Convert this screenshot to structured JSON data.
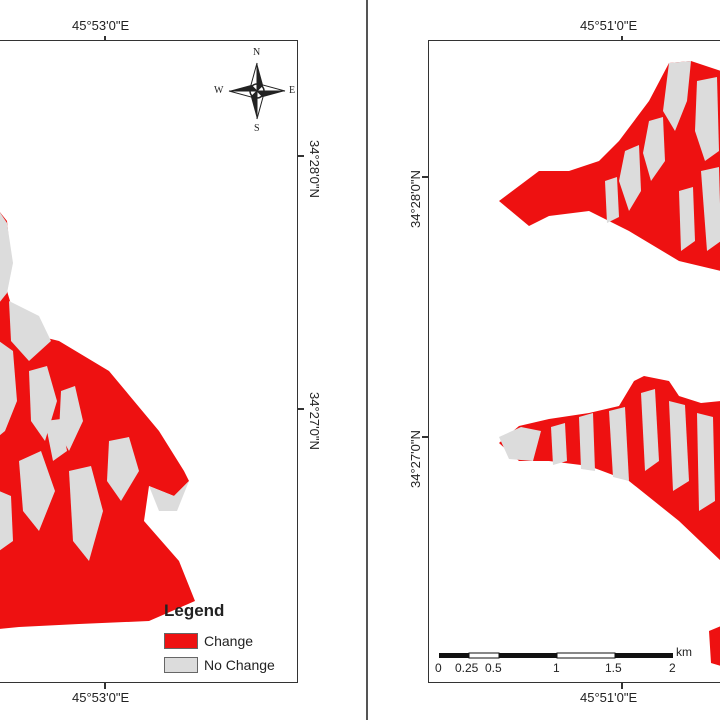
{
  "left_map": {
    "lon_label_top": "45°53'0\"E",
    "lon_label_bottom": "45°53'0\"E",
    "lat_label_upper": "34°28'0\"N",
    "lat_label_lower": "34°27'0\"N",
    "compass": {
      "n": "N",
      "s": "S",
      "e": "E",
      "w": "W"
    },
    "legend": {
      "title": "Legend",
      "items": [
        {
          "label": "Change",
          "color": "#ee1111"
        },
        {
          "label": "No Change",
          "color": "#dcdcdc"
        }
      ]
    }
  },
  "right_map": {
    "lon_label_top": "45°51'0\"E",
    "lon_label_bottom": "45°51'0\"E",
    "lat_label_upper": "34°28'0\"N",
    "lat_label_lower": "34°27'0\"N",
    "scalebar": {
      "unit": "km",
      "ticks": [
        "0",
        "0.25",
        "0.5",
        "1",
        "1.5",
        "2"
      ]
    }
  },
  "colors": {
    "change": "#ee1111",
    "no_change": "#dcdcdc",
    "frame": "#333333"
  }
}
